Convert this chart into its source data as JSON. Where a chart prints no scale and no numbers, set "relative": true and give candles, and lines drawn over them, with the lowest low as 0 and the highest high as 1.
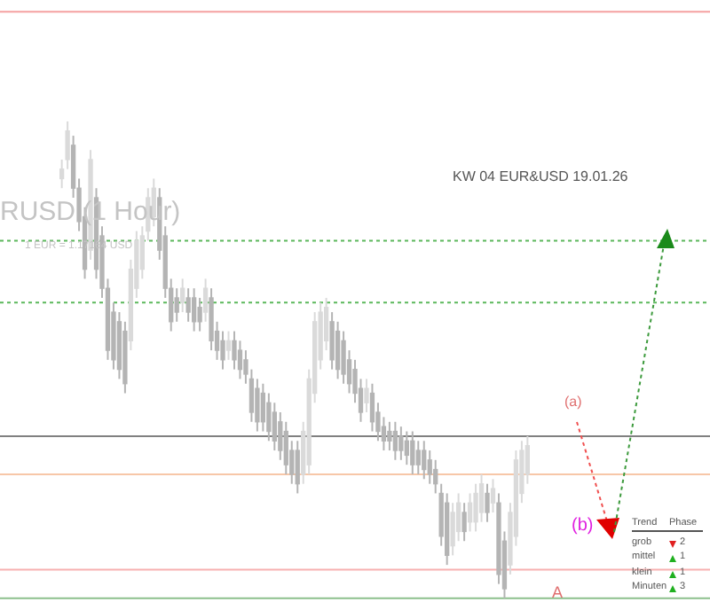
{
  "chart_data": {
    "type": "candlestick",
    "relative": true,
    "tick_labels": false,
    "colors": [
      "#dadada",
      "#dadada",
      "#b4b4b4",
      "#b4b4b4",
      "#b4b4b4",
      "#dadada",
      "#b4b4b4",
      "#b4b4b4",
      "#b4b4b4",
      "#b4b4b4",
      "#b4b4b4",
      "#b4b4b4",
      "#dadada",
      "#dadada",
      "#dadada",
      "#dadada",
      "#dadada",
      "#b4b4b4",
      "#b4b4b4",
      "#b4b4b4",
      "#b4b4b4",
      "#dadada",
      "#b4b4b4",
      "#b4b4b4",
      "#b4b4b4",
      "#dadada",
      "#b4b4b4",
      "#b4b4b4",
      "#b4b4b4",
      "#dadada",
      "#b4b4b4",
      "#b4b4b4",
      "#b4b4b4",
      "#b4b4b4",
      "#b4b4b4",
      "#b4b4b4",
      "#b4b4b4",
      "#b4b4b4",
      "#b4b4b4",
      "#b4b4b4",
      "#b4b4b4",
      "#b4b4b4",
      "#dadada",
      "#dadada",
      "#dadada",
      "#dadada",
      "#dadada",
      "#b4b4b4",
      "#b4b4b4",
      "#b4b4b4",
      "#b4b4b4",
      "#b4b4b4",
      "#b4b4b4",
      "#dadada",
      "#b4b4b4",
      "#b4b4b4",
      "#b4b4b4",
      "#b4b4b4",
      "#b4b4b4",
      "#b4b4b4",
      "#b4b4b4",
      "#b4b4b4",
      "#b4b4b4",
      "#b4b4b4",
      "#b4b4b4",
      "#b4b4b4",
      "#b4b4b4",
      "#b4b4b4",
      "#dadada",
      "#dadada",
      "#b4b4b4",
      "#dadada",
      "#dadada",
      "#dadada",
      "#b4b4b4",
      "#dadada",
      "#b4b4b4",
      "#b4b4b4",
      "#dadada",
      "#dadada",
      "#dadada",
      "#dadada"
    ],
    "categories": [
      null,
      null,
      null,
      null,
      null,
      null,
      null,
      null,
      null,
      null,
      null,
      null,
      null,
      null,
      null,
      null,
      null,
      null,
      null,
      null,
      null,
      null,
      null,
      null,
      null,
      null,
      null,
      null,
      null,
      null,
      null,
      null,
      null,
      null,
      null,
      null,
      null,
      null,
      null,
      null,
      null,
      null,
      null,
      null,
      null,
      null,
      null,
      null,
      null,
      null,
      null,
      null,
      null,
      null,
      null,
      null,
      null,
      null,
      null,
      null,
      null,
      null,
      null,
      null,
      null,
      null,
      null,
      null,
      null,
      null,
      null,
      null,
      null,
      null,
      null,
      null,
      null,
      null,
      null,
      null,
      null,
      null
    ],
    "ohlc": [
      [
        0.88,
        0.92,
        0.86,
        0.9
      ],
      [
        0.92,
        1.0,
        0.9,
        0.98
      ],
      [
        0.95,
        0.97,
        0.84,
        0.86
      ],
      [
        0.86,
        0.88,
        0.77,
        0.79
      ],
      [
        0.8,
        0.82,
        0.67,
        0.69
      ],
      [
        0.73,
        0.94,
        0.71,
        0.92
      ],
      [
        0.84,
        0.86,
        0.67,
        0.69
      ],
      [
        0.76,
        0.78,
        0.63,
        0.65
      ],
      [
        0.65,
        0.67,
        0.5,
        0.52
      ],
      [
        0.6,
        0.62,
        0.48,
        0.5
      ],
      [
        0.58,
        0.6,
        0.46,
        0.48
      ],
      [
        0.56,
        0.58,
        0.43,
        0.45
      ],
      [
        0.54,
        0.71,
        0.52,
        0.69
      ],
      [
        0.65,
        0.77,
        0.63,
        0.75
      ],
      [
        0.69,
        0.78,
        0.67,
        0.76
      ],
      [
        0.77,
        0.86,
        0.75,
        0.84
      ],
      [
        0.8,
        0.88,
        0.78,
        0.86
      ],
      [
        0.84,
        0.86,
        0.71,
        0.73
      ],
      [
        0.76,
        0.78,
        0.63,
        0.65
      ],
      [
        0.65,
        0.67,
        0.56,
        0.58
      ],
      [
        0.63,
        0.65,
        0.58,
        0.6
      ],
      [
        0.62,
        0.67,
        0.6,
        0.65
      ],
      [
        0.63,
        0.65,
        0.58,
        0.6
      ],
      [
        0.63,
        0.65,
        0.56,
        0.58
      ],
      [
        0.61,
        0.63,
        0.56,
        0.58
      ],
      [
        0.6,
        0.67,
        0.58,
        0.65
      ],
      [
        0.63,
        0.65,
        0.52,
        0.54
      ],
      [
        0.56,
        0.58,
        0.5,
        0.52
      ],
      [
        0.54,
        0.56,
        0.48,
        0.5
      ],
      [
        0.52,
        0.56,
        0.5,
        0.54
      ],
      [
        0.54,
        0.56,
        0.48,
        0.5
      ],
      [
        0.52,
        0.54,
        0.46,
        0.48
      ],
      [
        0.5,
        0.52,
        0.45,
        0.47
      ],
      [
        0.46,
        0.48,
        0.37,
        0.39
      ],
      [
        0.44,
        0.46,
        0.35,
        0.37
      ],
      [
        0.43,
        0.45,
        0.35,
        0.37
      ],
      [
        0.41,
        0.43,
        0.33,
        0.35
      ],
      [
        0.39,
        0.41,
        0.31,
        0.33
      ],
      [
        0.37,
        0.39,
        0.29,
        0.31
      ],
      [
        0.35,
        0.37,
        0.26,
        0.28
      ],
      [
        0.31,
        0.33,
        0.24,
        0.26
      ],
      [
        0.31,
        0.33,
        0.22,
        0.24
      ],
      [
        0.26,
        0.37,
        0.24,
        0.35
      ],
      [
        0.28,
        0.48,
        0.26,
        0.46
      ],
      [
        0.43,
        0.6,
        0.41,
        0.58
      ],
      [
        0.5,
        0.62,
        0.48,
        0.6
      ],
      [
        0.54,
        0.63,
        0.52,
        0.61
      ],
      [
        0.58,
        0.6,
        0.48,
        0.5
      ],
      [
        0.56,
        0.58,
        0.46,
        0.48
      ],
      [
        0.54,
        0.56,
        0.45,
        0.47
      ],
      [
        0.5,
        0.52,
        0.43,
        0.45
      ],
      [
        0.48,
        0.5,
        0.41,
        0.43
      ],
      [
        0.44,
        0.46,
        0.37,
        0.39
      ],
      [
        0.41,
        0.46,
        0.39,
        0.44
      ],
      [
        0.43,
        0.45,
        0.35,
        0.37
      ],
      [
        0.39,
        0.41,
        0.33,
        0.35
      ],
      [
        0.36,
        0.38,
        0.31,
        0.33
      ],
      [
        0.35,
        0.37,
        0.31,
        0.33
      ],
      [
        0.35,
        0.37,
        0.29,
        0.31
      ],
      [
        0.34,
        0.36,
        0.29,
        0.31
      ],
      [
        0.33,
        0.35,
        0.28,
        0.3
      ],
      [
        0.33,
        0.35,
        0.26,
        0.28
      ],
      [
        0.31,
        0.33,
        0.26,
        0.28
      ],
      [
        0.31,
        0.33,
        0.25,
        0.27
      ],
      [
        0.29,
        0.31,
        0.24,
        0.26
      ],
      [
        0.27,
        0.29,
        0.22,
        0.24
      ],
      [
        0.22,
        0.24,
        0.11,
        0.13
      ],
      [
        0.2,
        0.22,
        0.07,
        0.09
      ],
      [
        0.11,
        0.2,
        0.09,
        0.18
      ],
      [
        0.14,
        0.22,
        0.12,
        0.2
      ],
      [
        0.18,
        0.2,
        0.12,
        0.14
      ],
      [
        0.16,
        0.22,
        0.14,
        0.2
      ],
      [
        0.16,
        0.24,
        0.14,
        0.22
      ],
      [
        0.18,
        0.26,
        0.16,
        0.24
      ],
      [
        0.22,
        0.24,
        0.16,
        0.18
      ],
      [
        0.2,
        0.25,
        0.18,
        0.23
      ],
      [
        0.2,
        0.22,
        0.03,
        0.05
      ],
      [
        0.12,
        0.14,
        0.0,
        0.02
      ],
      [
        0.07,
        0.2,
        0.05,
        0.18
      ],
      [
        0.13,
        0.31,
        0.11,
        0.29
      ],
      [
        0.22,
        0.33,
        0.2,
        0.31
      ],
      [
        0.26,
        0.34,
        0.24,
        0.32
      ]
    ],
    "ref_lines": [
      {
        "axis": "y",
        "value": 1.23,
        "color": "#f4a0a0",
        "line_style": "solid"
      },
      {
        "axis": "y",
        "value": 0.75,
        "color": "#5cb85c",
        "line_style": "dotted"
      },
      {
        "axis": "y",
        "value": 0.62,
        "color": "#5cb85c",
        "line_style": "dotted"
      },
      {
        "axis": "y",
        "value": 0.34,
        "color": "#808080",
        "line_style": "solid"
      },
      {
        "axis": "y",
        "value": 0.26,
        "color": "#f7c7a8",
        "line_style": "solid"
      },
      {
        "axis": "y",
        "value": 0.06,
        "color": "#f7b0b0",
        "line_style": "solid"
      },
      {
        "axis": "y",
        "value": 0.0,
        "color": "#8cc08c",
        "line_style": "solid"
      }
    ],
    "annotations": [
      "RUSD (1 Hour)",
      "1 EUR = 1.17164 USD",
      "KW 04 EUR&USD 19.01.26",
      "(a)",
      "(b)",
      "A",
      "Trend",
      "Phase",
      "grob",
      "2",
      "mittel",
      "1",
      "klein",
      "1",
      "Minuten",
      "3"
    ]
  }
}
